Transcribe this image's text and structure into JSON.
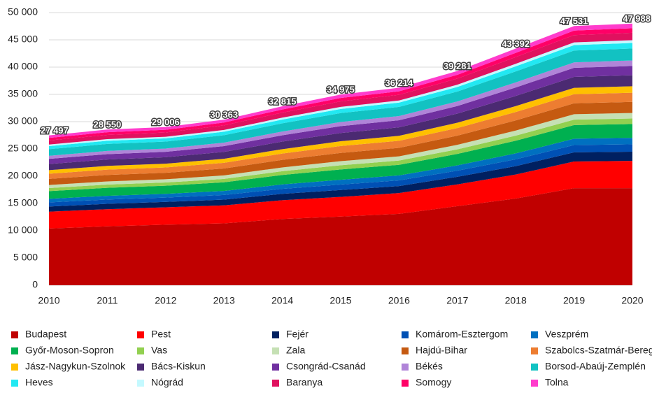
{
  "chart_data": {
    "type": "stacked_area",
    "categories": [
      "2010",
      "2011",
      "2012",
      "2013",
      "2014",
      "2015",
      "2016",
      "2017",
      "2018",
      "2019",
      "2020"
    ],
    "ylim": [
      0,
      50000
    ],
    "yticks": [
      0,
      {
        "value": 5000,
        "label": "5 000"
      },
      {
        "value": 10000,
        "label": "10 000"
      },
      {
        "value": 15000,
        "label": "15 000"
      },
      {
        "value": 20000,
        "label": "20 000"
      },
      {
        "value": 25000,
        "label": "25 000"
      },
      {
        "value": 30000,
        "label": "30 000"
      },
      {
        "value": 35000,
        "label": "35 000"
      },
      {
        "value": 40000,
        "label": "40 000"
      },
      {
        "value": 45000,
        "label": "45 000"
      },
      {
        "value": 50000,
        "label": "50 000"
      }
    ],
    "grid": true,
    "legend": "bottom",
    "totals": {
      "values": [
        27497,
        28550,
        29006,
        30363,
        32815,
        34975,
        36214,
        39281,
        43392,
        47531,
        47988
      ],
      "value_labels": [
        "27 497",
        "28 550",
        "29 006",
        "30 363",
        "32 815",
        "34 975",
        "36 214",
        "39 281",
        "43 392",
        "47 531",
        "47 988"
      ]
    },
    "series": [
      {
        "name": "Budapest",
        "color": "#c00000",
        "values": [
          10400,
          10800,
          11100,
          11350,
          12150,
          12600,
          13100,
          14500,
          15900,
          17800,
          17800
        ]
      },
      {
        "name": "Pest",
        "color": "#ff0000",
        "values": [
          3100,
          3150,
          3200,
          3300,
          3450,
          3600,
          3800,
          4000,
          4400,
          4900,
          5000
        ]
      },
      {
        "name": "Fejér",
        "color": "#002060",
        "values": [
          939,
          980,
          987,
          1055,
          1155,
          1260,
          1296,
          1395,
          1550,
          1667,
          1690
        ]
      },
      {
        "name": "Komárom-Esztergom",
        "color": "#0050b4",
        "values": [
          751,
          784,
          790,
          844,
          924,
          1008,
          1037,
          1116,
          1240,
          1334,
          1352
        ]
      },
      {
        "name": "Veszprém",
        "color": "#0070c0",
        "values": [
          657,
          686,
          691,
          739,
          809,
          882,
          907,
          977,
          1085,
          1167,
          1183
        ]
      },
      {
        "name": "Győr-Moson-Sopron",
        "color": "#00b050",
        "values": [
          1409,
          1470,
          1481,
          1583,
          1733,
          1890,
          1944,
          2093,
          2325,
          2501,
          2535
        ]
      },
      {
        "name": "Vas",
        "color": "#92d050",
        "values": [
          563,
          588,
          592,
          633,
          693,
          756,
          778,
          837,
          930,
          1000,
          1014
        ]
      },
      {
        "name": "Zala",
        "color": "#c5e0b4",
        "values": [
          563,
          588,
          592,
          633,
          693,
          756,
          778,
          837,
          930,
          1000,
          1014
        ]
      },
      {
        "name": "Hajdú-Bihar",
        "color": "#c55a11",
        "values": [
          1127,
          1176,
          1184,
          1266,
          1386,
          1512,
          1555,
          1674,
          1860,
          2000,
          2028
        ]
      },
      {
        "name": "Szabolcs-Szatmár-Bereg",
        "color": "#ed7d31",
        "values": [
          939,
          980,
          987,
          1055,
          1155,
          1260,
          1296,
          1395,
          1550,
          1667,
          1690
        ]
      },
      {
        "name": "Jász-Nagykun-Szolnok",
        "color": "#ffc000",
        "values": [
          657,
          686,
          691,
          739,
          809,
          882,
          907,
          977,
          1085,
          1167,
          1183
        ]
      },
      {
        "name": "Bács-Kiskun",
        "color": "#4b2a72",
        "values": [
          1127,
          1176,
          1184,
          1266,
          1386,
          1512,
          1555,
          1674,
          1860,
          2000,
          2028
        ]
      },
      {
        "name": "Csongrád-Csanád",
        "color": "#7030a0",
        "values": [
          939,
          980,
          987,
          1055,
          1155,
          1260,
          1296,
          1395,
          1550,
          1667,
          1690
        ]
      },
      {
        "name": "Békés",
        "color": "#b084d8",
        "values": [
          563,
          588,
          592,
          633,
          693,
          756,
          778,
          837,
          930,
          1000,
          1014
        ]
      },
      {
        "name": "Borsod-Abaúj-Zemplén",
        "color": "#12c2c2",
        "values": [
          1221,
          1274,
          1283,
          1372,
          1502,
          1638,
          1685,
          1814,
          2015,
          2167,
          2197
        ]
      },
      {
        "name": "Heves",
        "color": "#22e8f2",
        "values": [
          563,
          588,
          592,
          633,
          693,
          756,
          778,
          837,
          930,
          1000,
          1014
        ]
      },
      {
        "name": "Nógrád",
        "color": "#c4f9ff",
        "values": [
          282,
          294,
          296,
          317,
          347,
          378,
          389,
          419,
          465,
          500,
          507
        ]
      },
      {
        "name": "Baranya",
        "color": "#e0115f",
        "values": [
          751,
          784,
          790,
          844,
          924,
          1008,
          1037,
          1116,
          1240,
          1334,
          1352
        ]
      },
      {
        "name": "Somogy",
        "color": "#ff0066",
        "values": [
          470,
          490,
          494,
          528,
          578,
          630,
          648,
          698,
          775,
          834,
          845
        ]
      },
      {
        "name": "Tolna",
        "color": "#ff3ccc",
        "values": [
          470,
          490,
          494,
          528,
          578,
          630,
          648,
          698,
          775,
          834,
          845
        ]
      }
    ]
  }
}
